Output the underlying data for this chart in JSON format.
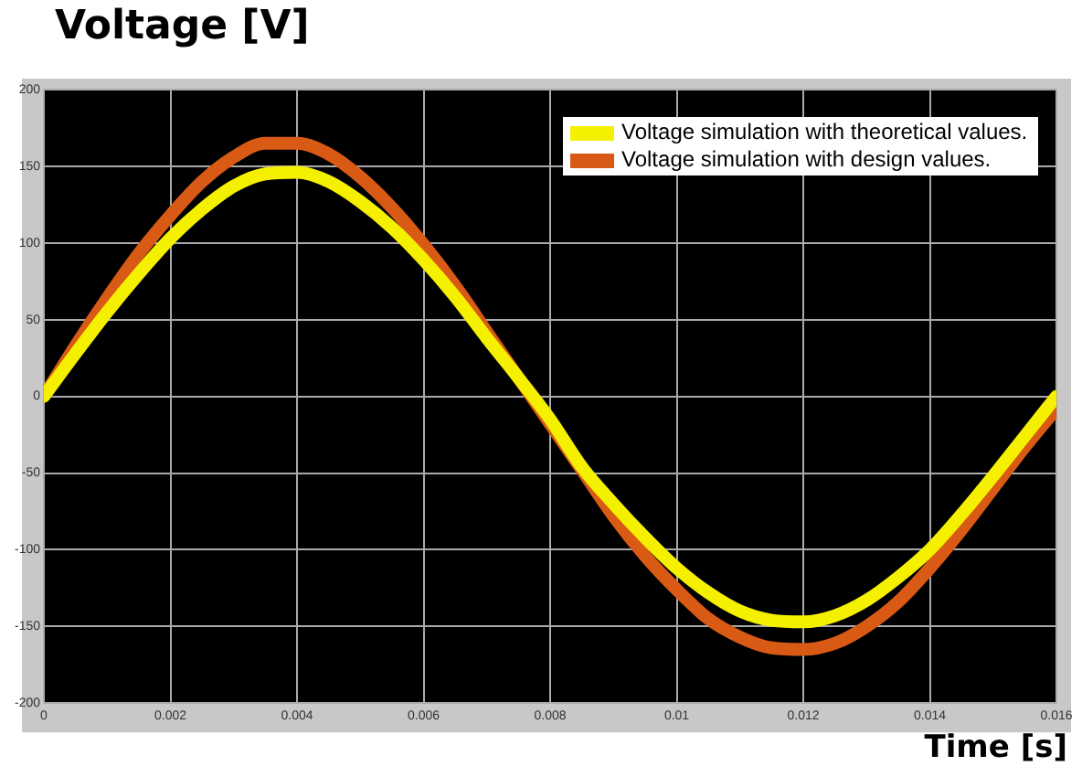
{
  "chart_data": {
    "type": "line",
    "ylabel": "Voltage [V]",
    "xlabel": "Time [s]",
    "x": [
      0,
      0.0005,
      0.001,
      0.0015,
      0.002,
      0.0025,
      0.003,
      0.0035,
      0.004,
      0.0045,
      0.005,
      0.0055,
      0.006,
      0.0065,
      0.007,
      0.0075,
      0.008,
      0.0085,
      0.009,
      0.0095,
      0.01,
      0.0105,
      0.011,
      0.0115,
      0.012,
      0.0125,
      0.013,
      0.0135,
      0.014,
      0.0145,
      0.015,
      0.0155,
      0.016
    ],
    "series": [
      {
        "name": "Voltage simulation with theoretical values.",
        "color": "#f5f000",
        "values": [
          0,
          28,
          55,
          80,
          103,
          122,
          137,
          145,
          146,
          140,
          127,
          110,
          89,
          65,
          38,
          12,
          -15,
          -46,
          -70,
          -92,
          -112,
          -128,
          -140,
          -146,
          -147,
          -143,
          -133,
          -118,
          -100,
          -77,
          -52,
          -26,
          0
        ]
      },
      {
        "name": "Voltage simulation with design values.",
        "color": "#d95a14",
        "values": [
          0,
          33,
          64,
          93,
          118,
          140,
          156,
          165,
          165,
          158,
          143,
          123,
          99,
          72,
          42,
          12,
          -18,
          -48,
          -78,
          -104,
          -126,
          -145,
          -157,
          -164,
          -165,
          -161,
          -150,
          -134,
          -112,
          -87,
          -60,
          -33,
          -8
        ]
      }
    ],
    "xlim": [
      0,
      0.016
    ],
    "xticks": [
      0,
      0.002,
      0.004,
      0.006,
      0.008,
      0.01,
      0.012,
      0.014,
      0.016
    ],
    "ylim": [
      -200,
      200
    ],
    "yticks": [
      -200,
      -150,
      -100,
      -50,
      0,
      50,
      100,
      150,
      200
    ],
    "grid": true,
    "legend": "top right",
    "marker": "none",
    "line_style": "solid"
  }
}
